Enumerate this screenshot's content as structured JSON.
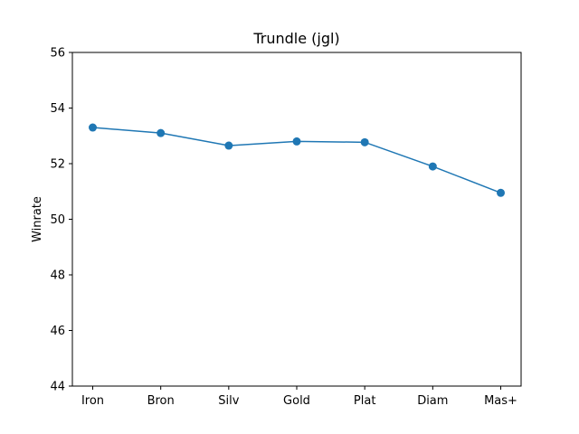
{
  "chart_data": {
    "type": "line",
    "title": "Trundle (jgl)",
    "xlabel": "",
    "ylabel": "Winrate",
    "categories": [
      "Iron",
      "Bron",
      "Silv",
      "Gold",
      "Plat",
      "Diam",
      "Mas+"
    ],
    "series": [
      {
        "values": [
          53.3,
          53.1,
          52.65,
          52.8,
          52.77,
          51.9,
          50.95
        ]
      }
    ],
    "ylim": [
      44,
      56
    ],
    "yticks": [
      "44",
      "46",
      "48",
      "50",
      "52",
      "54",
      "56"
    ],
    "grid": false,
    "legend": "none",
    "colors": {
      "line": "#1f77b4"
    }
  }
}
